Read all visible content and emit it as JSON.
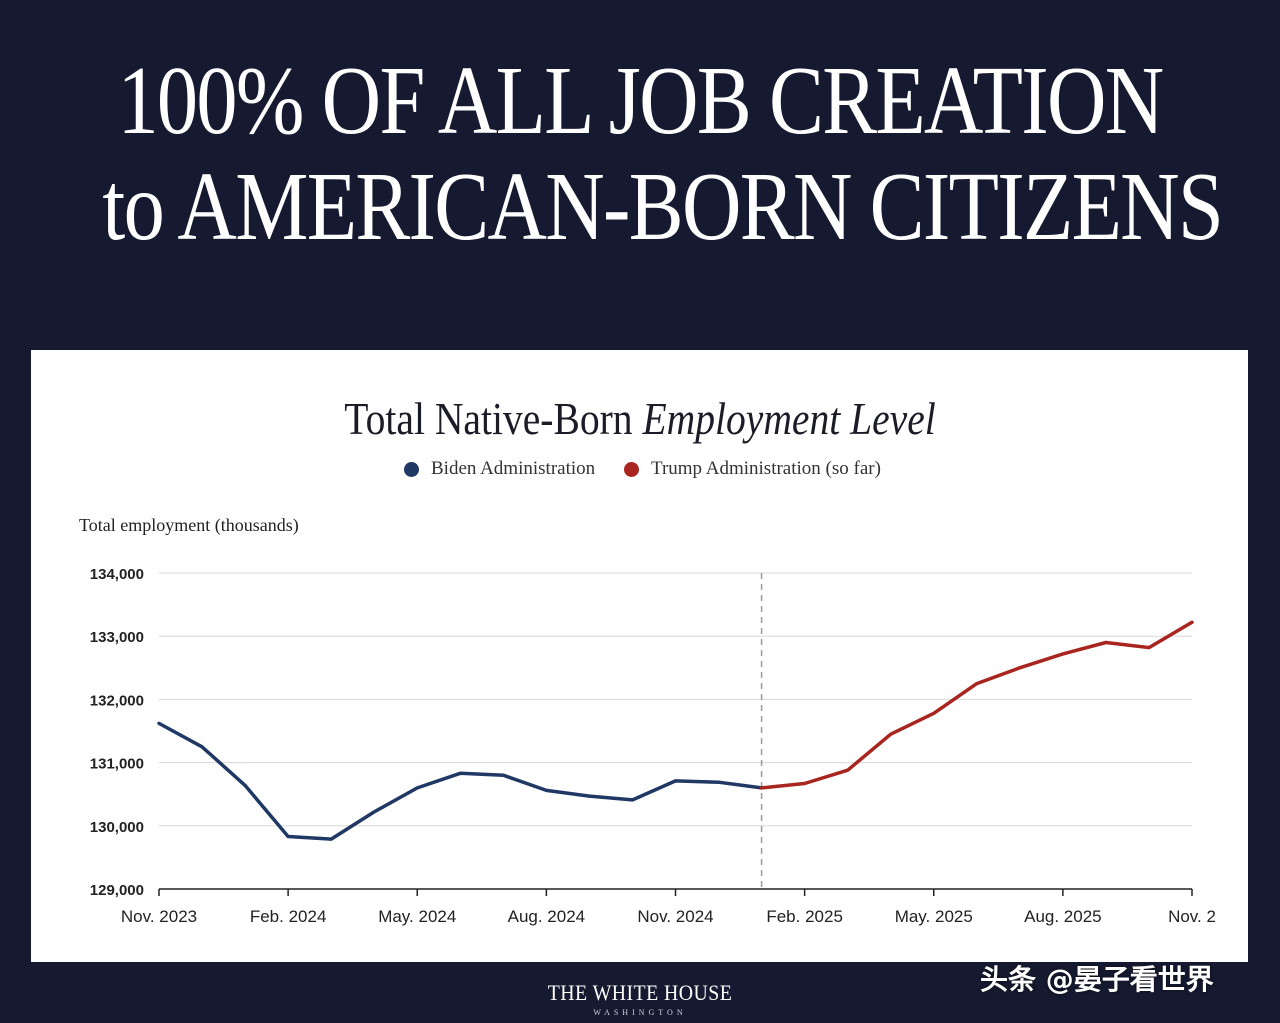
{
  "headline": {
    "line1": "100% OF ALL JOB CREATION",
    "line2": "to AMERICAN-BORN CITIZENS"
  },
  "colors": {
    "background": "#161a30",
    "biden": "#1f3864",
    "trump": "#a9251f"
  },
  "watermark": "头条 @晏子看世界",
  "footer": {
    "logo": "THE WHITE HOUSE",
    "sub": "WASHINGTON"
  },
  "chart_data": {
    "type": "line",
    "title_regular": "Total Native-Born ",
    "title_italic": "Employment Level",
    "ylabel": "Total employment (thousands)",
    "xlabel": "",
    "ylim": [
      129000,
      134000
    ],
    "y_ticks": [
      "129,000",
      "130,000",
      "131,000",
      "132,000",
      "133,000",
      "134,000"
    ],
    "y_tick_values": [
      129000,
      130000,
      131000,
      132000,
      133000,
      134000
    ],
    "x_ticks": [
      "Nov. 2023",
      "Feb. 2024",
      "May. 2024",
      "Aug. 2024",
      "Nov. 2024",
      "Feb. 2025",
      "May. 2025",
      "Aug. 2025",
      "Nov. 2"
    ],
    "x_tick_index": [
      0,
      3,
      6,
      9,
      12,
      15,
      18,
      21,
      24
    ],
    "divider_index": 14,
    "legend": [
      "Biden Administration",
      "Trump Administration (so far)"
    ],
    "series": [
      {
        "name": "Biden Administration",
        "months": [
          "Nov. 2023",
          "Dec. 2023",
          "Jan. 2024",
          "Feb. 2024",
          "Mar. 2024",
          "Apr. 2024",
          "May. 2024",
          "Jun. 2024",
          "Jul. 2024",
          "Aug. 2024",
          "Sep. 2024",
          "Oct. 2024",
          "Nov. 2024",
          "Dec. 2024",
          "Jan. 2025"
        ],
        "start_index": 0,
        "values": [
          131620,
          131250,
          130640,
          129830,
          129790,
          130220,
          130600,
          130830,
          130800,
          130560,
          130470,
          130410,
          130710,
          130690,
          130600
        ]
      },
      {
        "name": "Trump Administration (so far)",
        "months": [
          "Jan. 2025",
          "Feb. 2025",
          "Mar. 2025",
          "Apr. 2025",
          "May. 2025",
          "Jun. 2025",
          "Jul. 2025",
          "Aug. 2025",
          "Sep. 2025",
          "Oct. 2025",
          "Nov. 2025"
        ],
        "start_index": 14,
        "values": [
          130600,
          130670,
          130880,
          131450,
          131780,
          132250,
          132500,
          132720,
          132900,
          132820,
          133220
        ]
      }
    ]
  }
}
